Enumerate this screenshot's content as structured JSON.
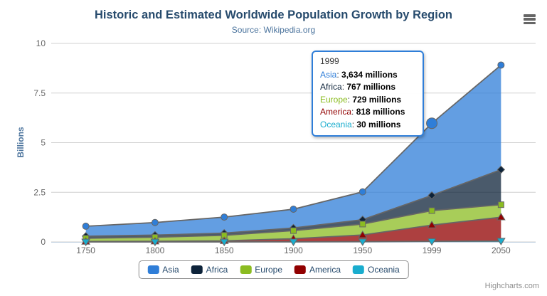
{
  "title": "Historic and Estimated Worldwide Population Growth by Region",
  "subtitle": "Source: Wikipedia.org",
  "credits": "Highcharts.com",
  "chart_data": {
    "type": "area",
    "stacking": "normal",
    "title": "Historic and Estimated Worldwide Population Growth by Region",
    "subtitle": "Source: Wikipedia.org",
    "xlabel": "",
    "ylabel": "Billions",
    "ylim": [
      0,
      10
    ],
    "yticks": [
      0,
      2.5,
      5,
      7.5,
      10
    ],
    "ytick_labels": [
      "0",
      "2.5",
      "5",
      "7.5",
      "10"
    ],
    "grid": true,
    "legend_position": "bottom",
    "unit": "millions",
    "categories": [
      "1750",
      "1800",
      "1850",
      "1900",
      "1950",
      "1999",
      "2050"
    ],
    "series": [
      {
        "name": "Asia",
        "color": "#2f7ed8",
        "marker": "circle",
        "values": [
          502,
          635,
          809,
          947,
          1402,
          3634,
          5268
        ]
      },
      {
        "name": "Africa",
        "color": "#0d233a",
        "marker": "diamond",
        "values": [
          106,
          107,
          111,
          133,
          221,
          767,
          1766
        ]
      },
      {
        "name": "Europe",
        "color": "#8bbc21",
        "marker": "square",
        "values": [
          163,
          203,
          276,
          408,
          547,
          729,
          628
        ]
      },
      {
        "name": "America",
        "color": "#910000",
        "marker": "triangle",
        "values": [
          18,
          31,
          54,
          156,
          339,
          818,
          1201
        ]
      },
      {
        "name": "Oceania",
        "color": "#1aadce",
        "marker": "triangle-down",
        "values": [
          2,
          2,
          2,
          6,
          13,
          30,
          46
        ]
      }
    ],
    "hover": {
      "series": "Asia",
      "category": "1999"
    }
  },
  "tooltip": {
    "header": "1999",
    "rows": [
      {
        "name": "Asia",
        "value": "3,634 millions"
      },
      {
        "name": "Africa",
        "value": "767 millions"
      },
      {
        "name": "Europe",
        "value": "729 millions"
      },
      {
        "name": "America",
        "value": "818 millions"
      },
      {
        "name": "Oceania",
        "value": "30 millions"
      }
    ]
  },
  "colors": {
    "title_text": "#274b6d",
    "subtitle_text": "#4d759e",
    "axis_label": "#666666",
    "grid_line": "#d0d0d0",
    "axis_line": "#c0d0e0",
    "series_outline": "#666666",
    "credits_text": "#909090"
  }
}
